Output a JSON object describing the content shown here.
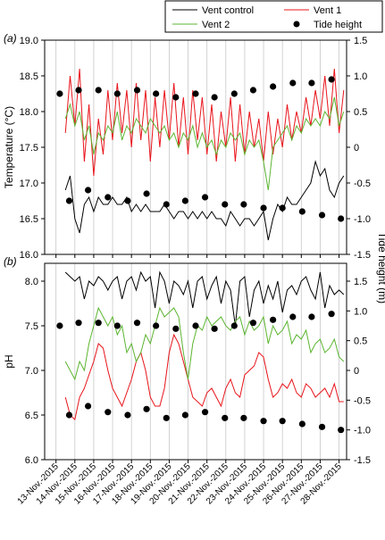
{
  "chart_data": [
    {
      "type": "line",
      "panel_label": "(a)",
      "y_label": "Temperature (°C)",
      "xlim": [
        -0.6,
        15.4
      ],
      "xticks": [
        0,
        1,
        2,
        3,
        4,
        5,
        6,
        7,
        8,
        9,
        10,
        11,
        12,
        13,
        14,
        15
      ],
      "grid": true,
      "ylim": [
        16,
        19
      ],
      "yticks": [
        {
          "value": 16,
          "label": "16.0"
        },
        16.5,
        {
          "value": 17,
          "label": "17.0"
        },
        17.5,
        {
          "value": 18,
          "label": "18.0"
        },
        18.5,
        {
          "value": 19,
          "label": "19.0"
        }
      ],
      "y2lim": [
        -1.5,
        1.5
      ],
      "y2ticks": [
        -1.5,
        {
          "value": -1,
          "label": "-1.0"
        },
        -0.5,
        0,
        0.5,
        {
          "value": 1,
          "label": "1.0"
        },
        1.5
      ],
      "x": [
        0.5,
        0.75,
        1,
        1.25,
        1.5,
        1.75,
        2,
        2.25,
        2.5,
        2.75,
        3,
        3.25,
        3.5,
        3.75,
        4,
        4.25,
        4.5,
        4.75,
        5,
        5.25,
        5.5,
        5.75,
        6,
        6.25,
        6.5,
        6.75,
        7,
        7.25,
        7.5,
        7.75,
        8,
        8.25,
        8.5,
        8.75,
        9,
        9.25,
        9.5,
        9.75,
        10,
        10.25,
        10.5,
        10.75,
        11,
        11.25,
        11.5,
        11.75,
        12,
        12.25,
        12.5,
        12.75,
        13,
        13.25,
        13.5,
        13.75,
        14,
        14.25,
        14.5,
        14.75,
        15,
        15.25
      ],
      "series": [
        {
          "name": "Vent control",
          "color": "#000000",
          "values": [
            16.9,
            17.1,
            16.5,
            16.3,
            16.7,
            16.8,
            16.6,
            16.8,
            16.7,
            16.7,
            16.8,
            16.7,
            16.7,
            16.8,
            16.6,
            16.7,
            16.6,
            16.7,
            16.6,
            16.6,
            16.6,
            16.7,
            16.6,
            16.5,
            16.6,
            16.6,
            16.5,
            16.6,
            16.5,
            16.6,
            16.5,
            16.6,
            16.5,
            16.5,
            16.4,
            16.6,
            16.5,
            16.4,
            16.5,
            16.5,
            16.4,
            16.5,
            16.6,
            16.2,
            16.5,
            16.7,
            16.6,
            16.8,
            16.7,
            16.7,
            16.8,
            16.9,
            17.0,
            17.3,
            17.1,
            17.2,
            16.9,
            16.8,
            17.0,
            17.1
          ]
        },
        {
          "name": "Vent 1",
          "color": "#e8141b",
          "values": [
            17.7,
            18.5,
            17.8,
            18.6,
            17.3,
            18.1,
            17.1,
            17.9,
            17.4,
            18.3,
            17.6,
            18.4,
            17.7,
            18.3,
            17.5,
            18.4,
            17.6,
            18.3,
            17.3,
            18.2,
            17.5,
            18.3,
            17.6,
            18.4,
            17.5,
            18.2,
            17.4,
            18.3,
            17.6,
            18.2,
            17.4,
            18.1,
            17.3,
            18.0,
            17.5,
            18.2,
            17.3,
            18.1,
            17.4,
            18.0,
            17.5,
            17.9,
            17.3,
            18.0,
            17.4,
            17.9,
            17.5,
            18.1,
            17.6,
            18.0,
            17.7,
            18.2,
            17.8,
            18.3,
            17.9,
            18.5,
            17.8,
            18.6,
            17.7,
            18.3
          ]
        },
        {
          "name": "Vent 2",
          "color": "#5cb531",
          "values": [
            17.9,
            18.1,
            17.8,
            18.0,
            17.6,
            17.8,
            17.4,
            17.7,
            17.6,
            17.8,
            17.7,
            18.0,
            17.6,
            17.8,
            17.7,
            17.9,
            17.8,
            17.7,
            17.9,
            17.8,
            17.7,
            17.8,
            17.6,
            17.7,
            17.5,
            17.7,
            17.6,
            17.8,
            17.5,
            17.7,
            17.5,
            17.6,
            17.4,
            17.6,
            17.5,
            17.7,
            17.6,
            17.7,
            17.4,
            17.6,
            17.5,
            17.6,
            17.3,
            16.9,
            17.5,
            17.6,
            17.7,
            17.8,
            17.6,
            17.8,
            17.7,
            17.9,
            17.8,
            17.9,
            17.8,
            18.0,
            17.9,
            18.2,
            17.8,
            18.0
          ]
        },
        {
          "name": "Tide height",
          "color": "#000000",
          "axis": "y2",
          "marker": "dot",
          "x": [
            0.2,
            0.7,
            1.2,
            1.7,
            2.25,
            2.75,
            3.25,
            3.8,
            4.3,
            4.8,
            5.3,
            5.85,
            6.35,
            6.85,
            7.4,
            7.9,
            8.4,
            8.95,
            9.45,
            9.95,
            10.45,
            11.0,
            11.5,
            12.0,
            12.55,
            13.05,
            13.55,
            14.1,
            14.6,
            15.1
          ],
          "values": [
            0.75,
            -0.75,
            0.8,
            -0.6,
            0.8,
            -0.7,
            0.75,
            -0.75,
            0.8,
            -0.65,
            0.75,
            -0.8,
            0.7,
            -0.75,
            0.75,
            -0.7,
            0.7,
            -0.8,
            0.75,
            -0.8,
            0.8,
            -0.85,
            0.85,
            -0.85,
            0.9,
            -0.9,
            0.9,
            -0.95,
            0.95,
            -1.0
          ]
        }
      ]
    },
    {
      "type": "line",
      "panel_label": "(b)",
      "y_label": "pH",
      "y2_label": "Tide height (m)",
      "xlim": [
        -0.6,
        15.4
      ],
      "grid": true,
      "xticks": [
        {
          "value": 0,
          "label": "13-Nov.-2015"
        },
        {
          "value": 1,
          "label": "14-Nov.-2015"
        },
        {
          "value": 2,
          "label": "15-Nov.-2015"
        },
        {
          "value": 3,
          "label": "16-Nov.-2015"
        },
        {
          "value": 4,
          "label": "17-Nov.-2015"
        },
        {
          "value": 5,
          "label": "18-Nov.-2015"
        },
        {
          "value": 6,
          "label": "19-Nov.-2015"
        },
        {
          "value": 7,
          "label": "20-Nov.-2015"
        },
        {
          "value": 8,
          "label": "21-Nov.-2015"
        },
        {
          "value": 9,
          "label": "22-Nov.-2015"
        },
        {
          "value": 10,
          "label": "23-Nov.-2015"
        },
        {
          "value": 11,
          "label": "24-Nov.-2015"
        },
        {
          "value": 12,
          "label": "25-Nov.-2015"
        },
        {
          "value": 13,
          "label": "26-Nov.-2015"
        },
        {
          "value": 14,
          "label": "27-Nov.-2015"
        },
        {
          "value": 15,
          "label": "28-Nov.-2015"
        }
      ],
      "ylim": [
        6,
        8.2
      ],
      "yticks": [
        {
          "value": 6,
          "label": "6.0"
        },
        6.5,
        {
          "value": 7,
          "label": "7.0"
        },
        7.5,
        {
          "value": 8,
          "label": "8.0"
        }
      ],
      "y2lim": [
        -1.5,
        1.8
      ],
      "y2ticks": [
        -1.5,
        {
          "value": -1,
          "label": "-1.0"
        },
        -0.5,
        0,
        0.5,
        {
          "value": 1,
          "label": "1.0"
        },
        1.5
      ],
      "x": [
        0.5,
        0.75,
        1,
        1.25,
        1.5,
        1.75,
        2,
        2.25,
        2.5,
        2.75,
        3,
        3.25,
        3.5,
        3.75,
        4,
        4.25,
        4.5,
        4.75,
        5,
        5.25,
        5.5,
        5.75,
        6,
        6.25,
        6.5,
        6.75,
        7,
        7.25,
        7.5,
        7.75,
        8,
        8.25,
        8.5,
        8.75,
        9,
        9.25,
        9.5,
        9.75,
        10,
        10.25,
        10.5,
        10.75,
        11,
        11.25,
        11.5,
        11.75,
        12,
        12.25,
        12.5,
        12.75,
        13,
        13.25,
        13.5,
        13.75,
        14,
        14.25,
        14.5,
        14.75,
        15,
        15.25
      ],
      "series": [
        {
          "color": "#000000",
          "values": [
            8.1,
            8.05,
            8.0,
            8.05,
            7.8,
            8.0,
            7.95,
            8.05,
            8.0,
            7.9,
            8.0,
            8.05,
            7.8,
            8.0,
            8.05,
            7.9,
            8.1,
            8.0,
            8.05,
            7.7,
            8.1,
            8.0,
            7.75,
            8.0,
            7.95,
            7.85,
            8.0,
            7.7,
            8.0,
            8.05,
            7.8,
            7.95,
            8.05,
            7.75,
            8.0,
            7.9,
            7.5,
            8.0,
            8.05,
            7.6,
            7.9,
            8.0,
            7.75,
            7.95,
            7.8,
            8.0,
            7.65,
            7.9,
            7.95,
            7.85,
            8.0,
            8.05,
            7.9,
            7.8,
            8.1,
            7.7,
            7.95,
            7.85,
            7.9,
            7.85
          ]
        },
        {
          "color": "#e8141b",
          "values": [
            6.7,
            6.5,
            6.45,
            6.7,
            6.8,
            6.95,
            7.1,
            7.3,
            7.25,
            7.0,
            6.8,
            6.7,
            6.6,
            6.75,
            6.9,
            7.1,
            7.2,
            7.0,
            6.7,
            6.6,
            6.6,
            6.8,
            7.2,
            7.4,
            7.3,
            7.1,
            6.9,
            6.7,
            6.65,
            6.6,
            6.75,
            6.8,
            6.7,
            6.6,
            6.8,
            6.9,
            6.75,
            6.7,
            6.95,
            7.0,
            7.05,
            7.2,
            7.15,
            6.9,
            6.7,
            6.75,
            6.85,
            6.8,
            6.9,
            6.75,
            6.7,
            6.85,
            6.8,
            6.7,
            6.75,
            6.8,
            6.7,
            6.85,
            6.65,
            6.65
          ]
        },
        {
          "color": "#5cb531",
          "values": [
            7.1,
            7.0,
            6.9,
            7.1,
            7.0,
            7.3,
            7.5,
            7.7,
            7.6,
            7.5,
            7.6,
            7.4,
            7.5,
            7.2,
            7.3,
            7.1,
            7.2,
            7.4,
            7.3,
            7.5,
            7.7,
            7.6,
            7.65,
            7.7,
            7.6,
            7.2,
            6.9,
            7.3,
            7.5,
            7.45,
            7.6,
            7.5,
            7.55,
            7.6,
            7.5,
            7.45,
            7.55,
            7.6,
            7.4,
            7.55,
            7.45,
            7.5,
            7.6,
            7.3,
            7.5,
            7.4,
            7.45,
            7.55,
            7.3,
            7.4,
            7.35,
            7.45,
            7.2,
            7.3,
            7.35,
            7.2,
            7.25,
            7.35,
            7.15,
            7.1
          ]
        },
        {
          "color": "#000000",
          "axis": "y2",
          "marker": "dot",
          "x": [
            0.2,
            0.7,
            1.2,
            1.7,
            2.25,
            2.75,
            3.25,
            3.8,
            4.3,
            4.8,
            5.3,
            5.85,
            6.35,
            6.85,
            7.4,
            7.9,
            8.4,
            8.95,
            9.45,
            9.95,
            10.45,
            11.0,
            11.5,
            12.0,
            12.55,
            13.05,
            13.55,
            14.1,
            14.6,
            15.1
          ],
          "values": [
            0.75,
            -0.75,
            0.8,
            -0.6,
            0.8,
            -0.7,
            0.75,
            -0.75,
            0.8,
            -0.65,
            0.75,
            -0.8,
            0.7,
            -0.75,
            0.75,
            -0.7,
            0.7,
            -0.8,
            0.75,
            -0.8,
            0.8,
            -0.85,
            0.85,
            -0.85,
            0.9,
            -0.9,
            0.9,
            -0.95,
            0.95,
            -1.0
          ]
        }
      ]
    }
  ]
}
